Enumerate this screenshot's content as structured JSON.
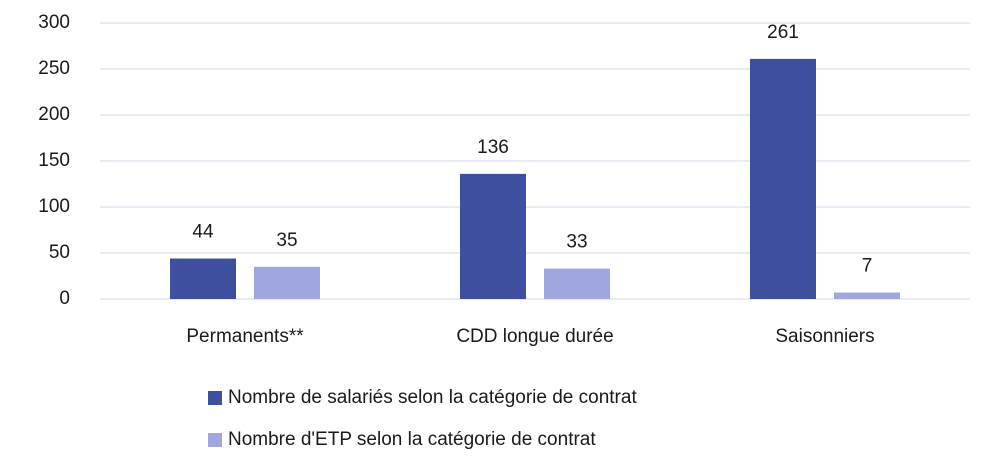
{
  "chart_data": {
    "type": "bar",
    "categories": [
      "Permanents**",
      "CDD longue durée",
      "Saisonniers"
    ],
    "series": [
      {
        "name": "Nombre de salariés selon la catégorie de contrat",
        "color": "#3d4f9e",
        "values": [
          44,
          136,
          261
        ]
      },
      {
        "name": "Nombre d'ETP selon la catégorie de contrat",
        "color": "#9fa6e0",
        "values": [
          35,
          33,
          7
        ]
      }
    ],
    "ylim": [
      0,
      300
    ],
    "yticks": [
      0,
      50,
      100,
      150,
      200,
      250,
      300
    ],
    "grid": true
  }
}
